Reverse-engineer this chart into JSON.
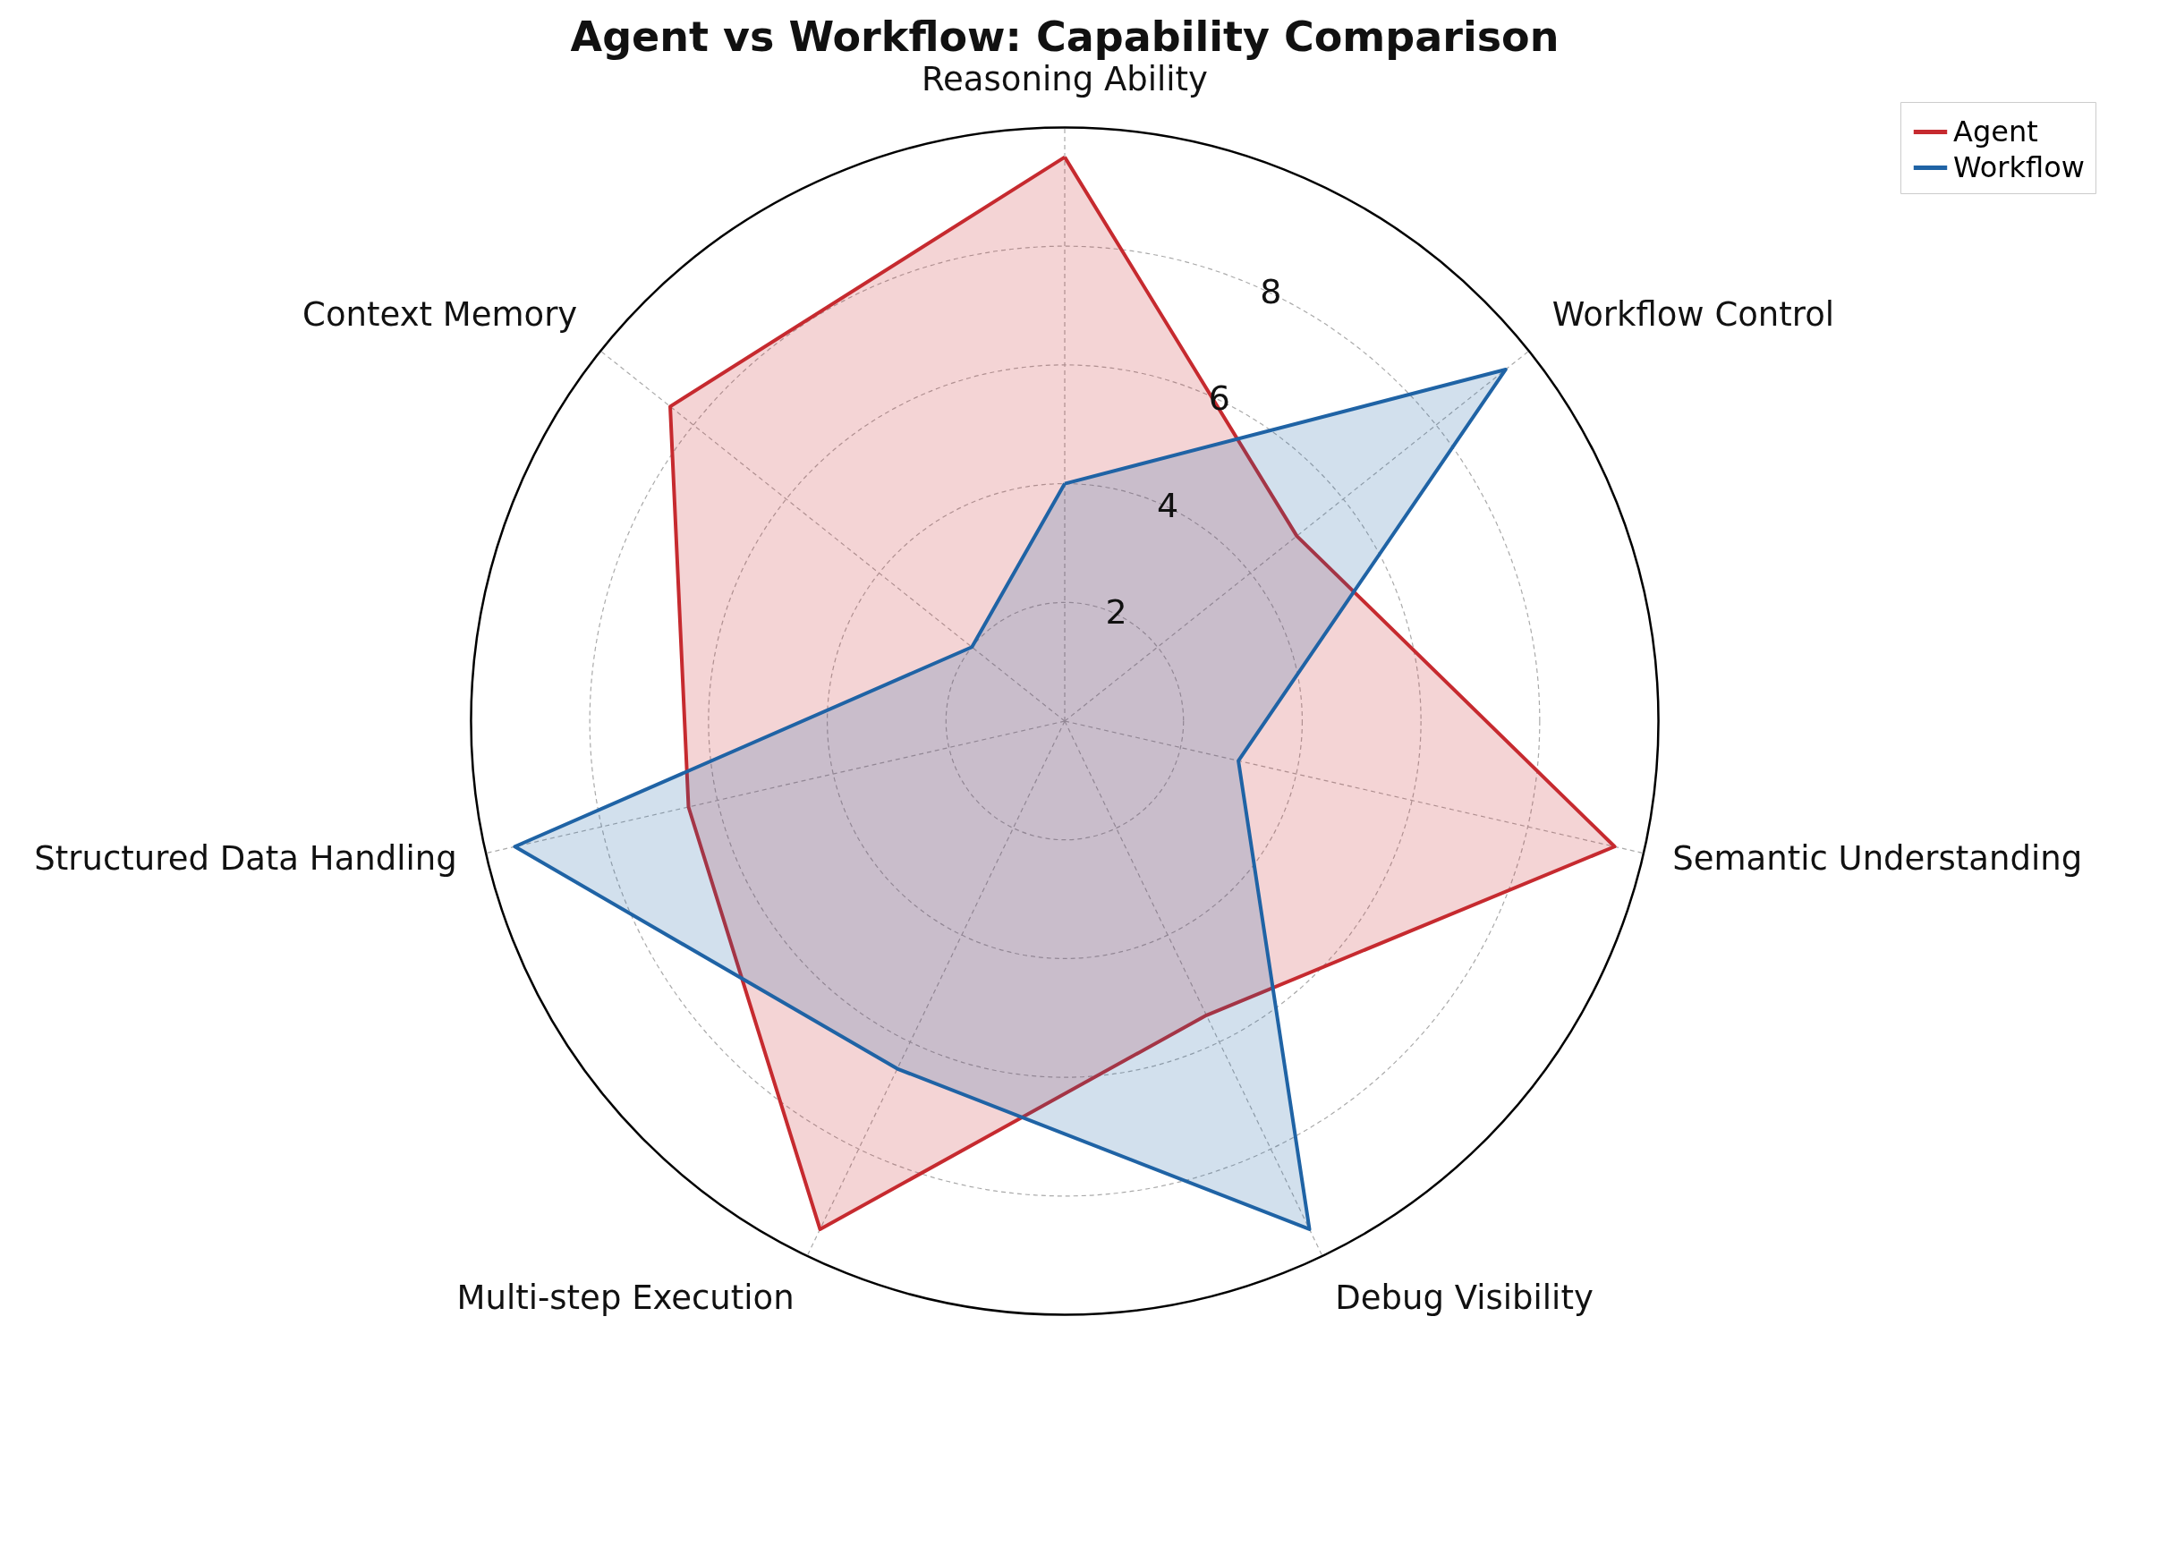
{
  "chart_data": {
    "type": "radar",
    "title": "Agent vs Workflow: Capability Comparison",
    "categories": [
      "Reasoning Ability",
      "Workflow Control",
      "Semantic Understanding",
      "Debug Visibility",
      "Multi-step Execution",
      "Structured Data Handling",
      "Context Memory"
    ],
    "series": [
      {
        "name": "Agent",
        "color": "#c62a2f",
        "values": [
          9.5,
          5,
          9.5,
          5.5,
          9.5,
          6.5,
          8.5
        ]
      },
      {
        "name": "Workflow",
        "color": "#1f63a5",
        "values": [
          4,
          9.5,
          3,
          9.5,
          6.5,
          9.5,
          2
        ]
      }
    ],
    "ylim": [
      0,
      10
    ],
    "yticks": [
      2,
      4,
      6,
      8
    ],
    "grid": true,
    "legend": "top right"
  }
}
